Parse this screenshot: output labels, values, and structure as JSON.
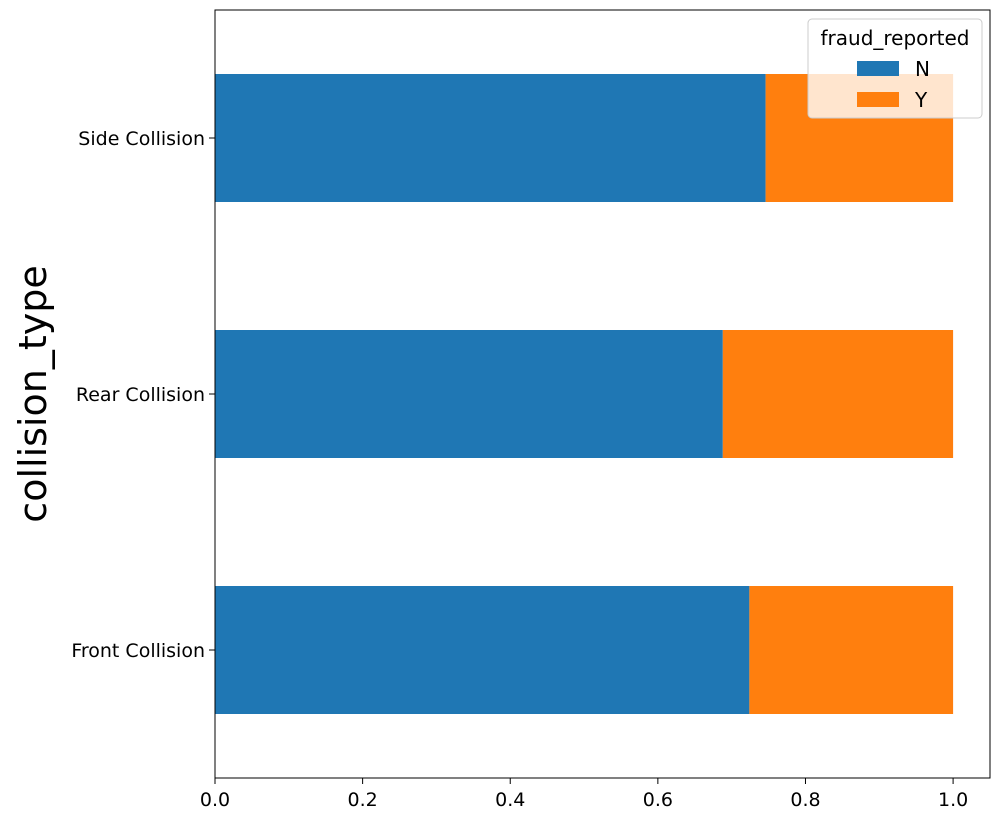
{
  "chart_data": {
    "type": "bar",
    "orientation": "horizontal",
    "stacked": true,
    "categories": [
      "Front Collision",
      "Rear Collision",
      "Side Collision"
    ],
    "series": [
      {
        "name": "N",
        "color": "#1f77b4",
        "values": [
          0.724,
          0.688,
          0.746
        ]
      },
      {
        "name": "Y",
        "color": "#ff7f0e",
        "values": [
          0.276,
          0.312,
          0.254
        ]
      }
    ],
    "title": "",
    "xlabel": "",
    "ylabel": "collision_type",
    "xlim": [
      0.0,
      1.05
    ],
    "xticks": [
      "0.0",
      "0.2",
      "0.4",
      "0.6",
      "0.8",
      "1.0"
    ],
    "xtick_values": [
      0.0,
      0.2,
      0.4,
      0.6,
      0.8,
      1.0
    ],
    "grid": false,
    "legend": {
      "title": "fraud_reported",
      "placement": "top-right"
    }
  }
}
